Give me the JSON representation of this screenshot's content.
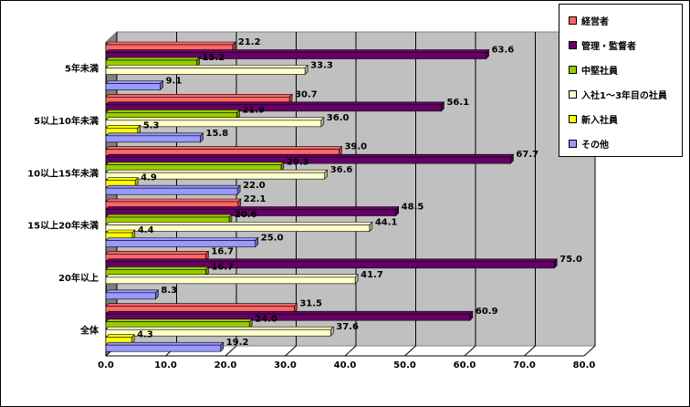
{
  "chart_data": {
    "type": "bar",
    "orientation": "horizontal",
    "style": "3d",
    "categories": [
      "5年未満",
      "5以上10年未満",
      "10以上15年未満",
      "15以上20年未満",
      "20年以上",
      "全体"
    ],
    "series": [
      {
        "name": "経営者",
        "color": "#FF6666",
        "values": [
          21.2,
          30.7,
          39.0,
          22.1,
          16.7,
          31.5
        ]
      },
      {
        "name": "管理・監督者",
        "color": "#660066",
        "values": [
          63.6,
          56.1,
          67.7,
          48.5,
          75.0,
          60.9
        ]
      },
      {
        "name": "中堅社員",
        "color": "#99CC00",
        "values": [
          15.2,
          21.9,
          29.3,
          20.6,
          16.7,
          24.0
        ]
      },
      {
        "name": "入社1～3年目の社員",
        "color": "#FFFFCC",
        "values": [
          33.3,
          36.0,
          36.6,
          44.1,
          41.7,
          37.6
        ]
      },
      {
        "name": "新入社員",
        "color": "#FFFF00",
        "values": [
          0.0,
          5.3,
          4.9,
          4.4,
          0.0,
          4.3
        ]
      },
      {
        "name": "その他",
        "color": "#9999FF",
        "values": [
          9.1,
          15.8,
          22.0,
          25.0,
          8.3,
          19.2
        ]
      }
    ],
    "data_labels": [
      [
        "21.2",
        "63.6",
        "15.2",
        "33.3",
        "",
        "9.1"
      ],
      [
        "30.7",
        "56.1",
        "21.9",
        "36.0",
        "5.3",
        "15.8"
      ],
      [
        "39.0",
        "67.7",
        "29.3",
        "36.6",
        "4.9",
        "22.0"
      ],
      [
        "22.1",
        "48.5",
        "20.6",
        "44.1",
        "4.4",
        "25.0"
      ],
      [
        "16.7",
        "75.0",
        "16.7",
        "41.7",
        "",
        "8.3"
      ],
      [
        "31.5",
        "60.9",
        "24.0",
        "37.6",
        "4.3",
        "19.2"
      ]
    ],
    "xlim": [
      0,
      80
    ],
    "xticks": [
      "0.0",
      "10.0",
      "20.0",
      "30.0",
      "40.0",
      "50.0",
      "60.0",
      "70.0",
      "80.0"
    ],
    "grid": true,
    "legend": "right"
  }
}
